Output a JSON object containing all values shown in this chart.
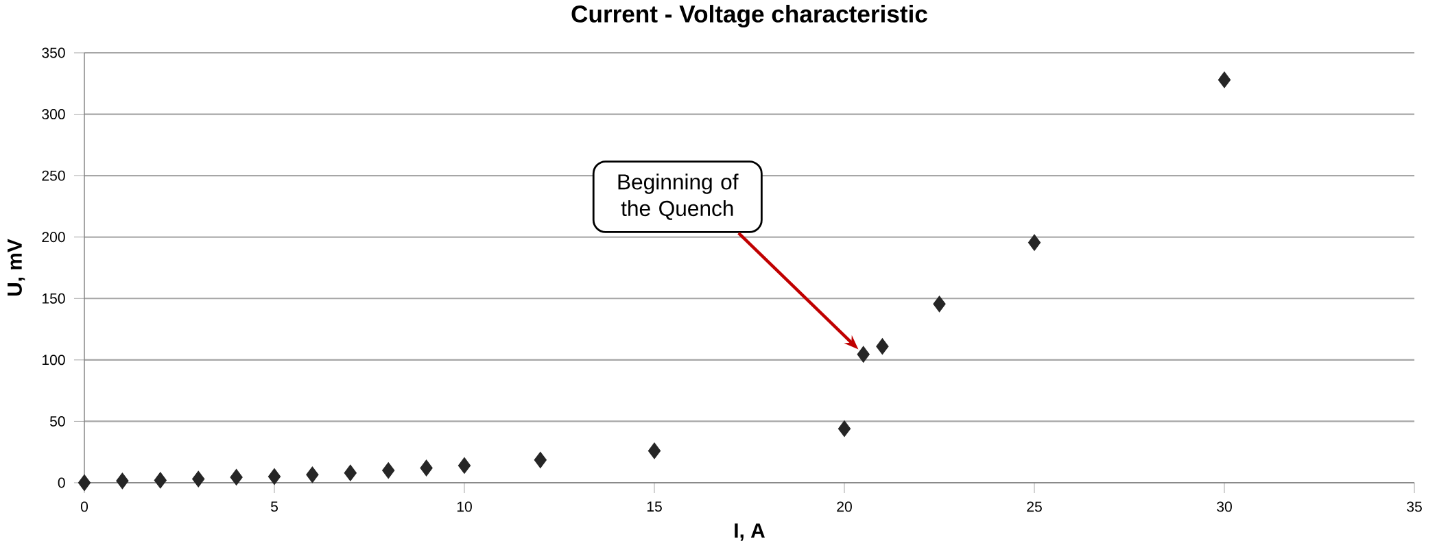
{
  "chart_data": {
    "type": "scatter",
    "title": "Current - Voltage characteristic",
    "xlabel": "I, A",
    "ylabel": "U, mV",
    "x": [
      0,
      1,
      2,
      3,
      4,
      5,
      6,
      7,
      8,
      9,
      10,
      12,
      15,
      20,
      20.5,
      21,
      22.5,
      25,
      30
    ],
    "values": [
      0,
      1.5,
      2,
      3,
      4.5,
      5,
      6.5,
      8,
      10,
      12,
      14,
      18.5,
      26,
      44,
      104.5,
      111,
      145.5,
      195.5,
      328
    ],
    "color": "#262626",
    "marker": "diamond",
    "xlim": [
      0,
      35
    ],
    "ylim": [
      0,
      350
    ],
    "xticks": [
      0,
      5,
      10,
      15,
      20,
      25,
      30,
      35
    ],
    "yticks": [
      0,
      50,
      100,
      150,
      200,
      250,
      300,
      350
    ],
    "grid": "y",
    "annotations": [
      "Beginning of the Quench"
    ]
  }
}
